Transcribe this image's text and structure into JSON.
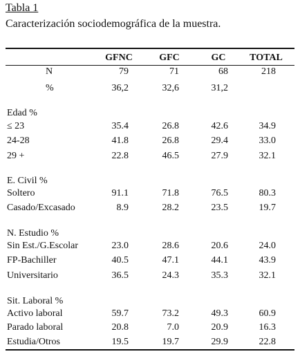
{
  "header": {
    "title": "Tabla 1",
    "subtitle": "Caracterización sociodemográfica de la muestra."
  },
  "table": {
    "columns": [
      "GFNC",
      "GFC",
      "GC",
      "TOTAL"
    ],
    "rows": [
      {
        "label": "N",
        "values": [
          "79",
          "71",
          "68",
          "218"
        ]
      },
      {
        "label": "%",
        "values": [
          "36,2",
          "32,6",
          "31,2"
        ]
      },
      {
        "label": "Edad %"
      },
      {
        "label": "≤ 23",
        "values": [
          "35.4",
          "26.8",
          "42.6",
          "34.9"
        ]
      },
      {
        "label": "24-28",
        "values": [
          "41.8",
          "26.8",
          "29.4",
          "33.0"
        ]
      },
      {
        "label": "29 +",
        "values": [
          "22.8",
          "46.5",
          "27.9",
          "32.1"
        ]
      },
      {
        "label": "E. Civil %"
      },
      {
        "label": "Soltero",
        "values": [
          "91.1",
          "71.8",
          "76.5",
          "80.3"
        ]
      },
      {
        "label": "Casado/Excasado",
        "values": [
          "8.9",
          "28.2",
          "23.5",
          "19.7"
        ]
      },
      {
        "label": "N. Estudio %"
      },
      {
        "label": "Sin Est./G.Escolar",
        "values": [
          "23.0",
          "28.6",
          "20.6",
          "24.0"
        ]
      },
      {
        "label": "FP-Bachiller",
        "values": [
          "40.5",
          "47.1",
          "44.1",
          "43.9"
        ]
      },
      {
        "label": "Universitario",
        "values": [
          "36.5",
          "24.3",
          "35.3",
          "32.1"
        ]
      },
      {
        "label": "Sit. Laboral %"
      },
      {
        "label": "Activo laboral",
        "values": [
          "59.7",
          "73.2",
          "49.3",
          "60.9"
        ]
      },
      {
        "label": "Parado laboral",
        "values": [
          "20.8",
          "7.0",
          "20.9",
          "16.3"
        ]
      },
      {
        "label": "Estudia/Otros",
        "values": [
          "19.5",
          "19.7",
          "29.9",
          "22.8"
        ]
      }
    ]
  }
}
